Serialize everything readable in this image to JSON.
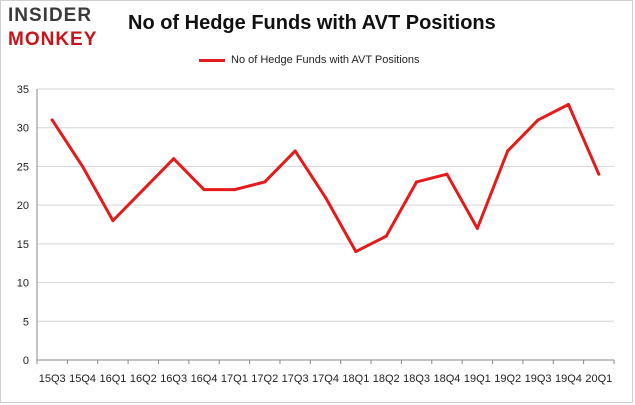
{
  "logo": {
    "line1": "INSIDER",
    "line2": "MONKEY"
  },
  "colors": {
    "series": "#e51b1b",
    "grid": "#d6d6d6",
    "axis": "#888888",
    "logo_red": "#c7141a"
  },
  "chart_data": {
    "type": "line",
    "title": "No of Hedge Funds with AVT Positions",
    "xlabel": "",
    "ylabel": "",
    "ylim": [
      0,
      35
    ],
    "yticks": [
      0,
      5,
      10,
      15,
      20,
      25,
      30,
      35
    ],
    "grid": true,
    "legend_position": "top-center",
    "categories": [
      "15Q3",
      "15Q4",
      "16Q1",
      "16Q2",
      "16Q3",
      "16Q4",
      "17Q1",
      "17Q2",
      "17Q3",
      "17Q4",
      "18Q1",
      "18Q2",
      "18Q3",
      "18Q4",
      "19Q1",
      "19Q2",
      "19Q3",
      "19Q4",
      "20Q1"
    ],
    "series": [
      {
        "name": "No of Hedge Funds with AVT Positions",
        "values": [
          31,
          25,
          18,
          22,
          26,
          22,
          22,
          23,
          27,
          21,
          14,
          16,
          23,
          24,
          17,
          27,
          31,
          33,
          24
        ]
      }
    ]
  }
}
